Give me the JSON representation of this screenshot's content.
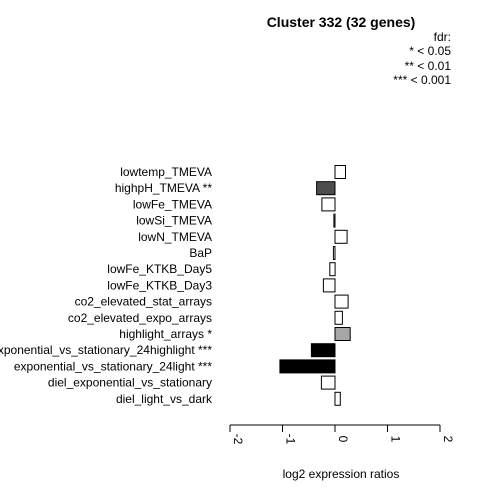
{
  "chart_data": {
    "type": "bar",
    "orientation": "horizontal",
    "title": "Cluster 332 (32 genes)",
    "xlabel": "log2 expression ratios",
    "ylabel": "",
    "xlim": [
      -2,
      2
    ],
    "xticks": [
      -2,
      -1,
      0,
      1,
      2
    ],
    "xtick_labels": [
      "-2",
      "-1",
      "0",
      "1",
      "2"
    ],
    "legend": {
      "title": "fdr:",
      "entries": [
        "* < 0.05",
        "** < 0.01",
        "*** < 0.001"
      ],
      "position": "top-right"
    },
    "categories": [
      "lowtemp_TMEVA",
      "highpH_TMEVA **",
      "lowFe_TMEVA",
      "lowSi_TMEVA",
      "lowN_TMEVA",
      "BaP",
      "lowFe_KTKB_Day5",
      "lowFe_KTKB_Day3",
      "co2_elevated_stat_arrays",
      "co2_elevated_expo_arrays",
      "highlight_arrays *",
      "exponential_vs_stationary_24highlight ***",
      "exponential_vs_stationary_24light ***",
      "diel_exponential_vs_stationary",
      "diel_light_vs_dark"
    ],
    "values": [
      0.2,
      -0.35,
      -0.25,
      -0.02,
      0.23,
      -0.03,
      -0.1,
      -0.22,
      0.25,
      0.14,
      0.29,
      -0.45,
      -1.05,
      -0.26,
      0.1
    ],
    "colors": [
      "#ffffff",
      "#4d4d4d",
      "#ffffff",
      "#ffffff",
      "#ffffff",
      "#ffffff",
      "#ffffff",
      "#ffffff",
      "#ffffff",
      "#ffffff",
      "#a6a6a6",
      "#000000",
      "#000000",
      "#ffffff",
      "#ffffff"
    ],
    "grid": false
  }
}
